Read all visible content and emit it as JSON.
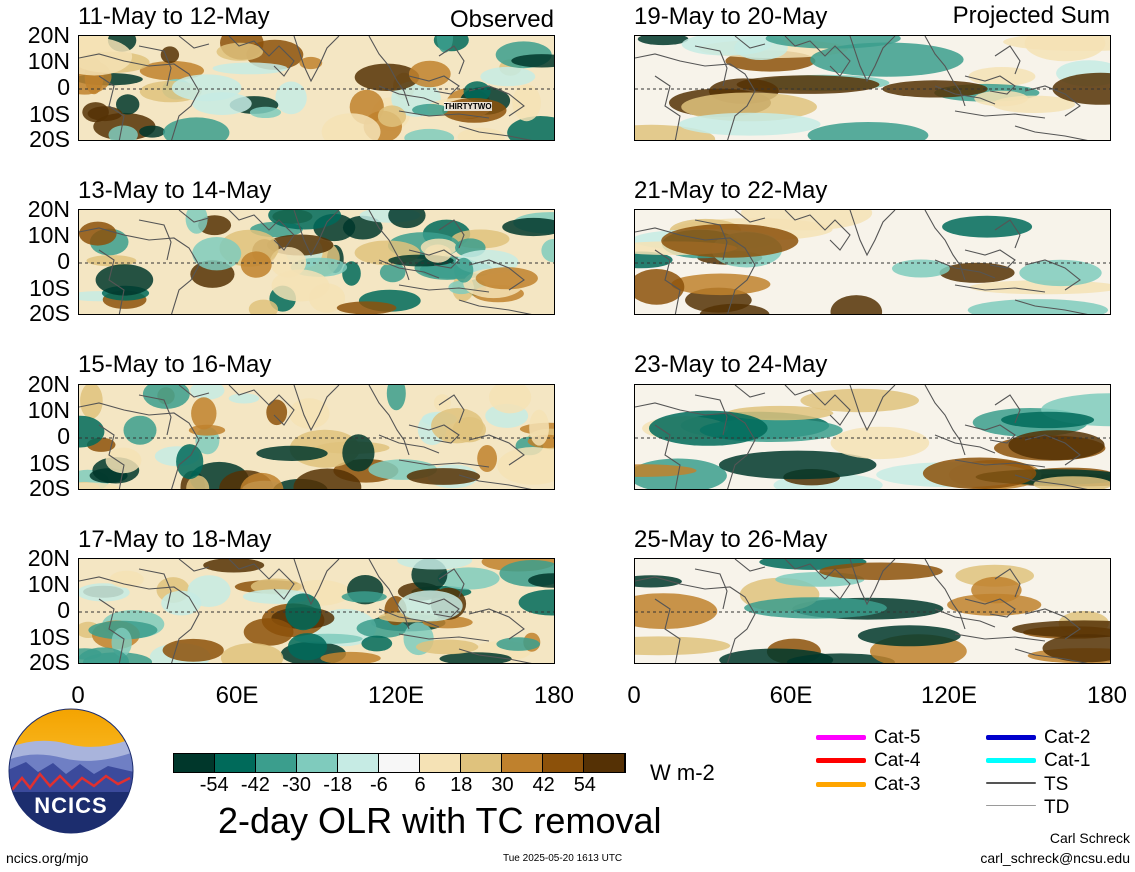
{
  "left_header_tag": "Observed",
  "right_header_tag": "Projected Sum",
  "panels_left": [
    {
      "title": "11-May to 12-May"
    },
    {
      "title": "13-May to 14-May"
    },
    {
      "title": "15-May to 16-May"
    },
    {
      "title": "17-May to 18-May"
    }
  ],
  "panels_right": [
    {
      "title": "19-May to 20-May"
    },
    {
      "title": "21-May to 22-May"
    },
    {
      "title": "23-May to 24-May"
    },
    {
      "title": "25-May to 26-May"
    }
  ],
  "storm_label": "THIRTYTWO",
  "y_labels": [
    "20N",
    "10N",
    "0",
    "10S",
    "20S"
  ],
  "x_labels": [
    "0",
    "60E",
    "120E",
    "180"
  ],
  "colorbar": {
    "ticks": [
      "-54",
      "-42",
      "-30",
      "-18",
      "-6",
      "6",
      "18",
      "30",
      "42",
      "54"
    ],
    "colors": [
      "#00372b",
      "#006a5a",
      "#3b9e8d",
      "#7fcbbd",
      "#c6ebe4",
      "#f7f7f7",
      "#f5e2b5",
      "#dfc27d",
      "#bf812d",
      "#8c510a",
      "#553105"
    ],
    "units": "W m-2"
  },
  "legend": [
    {
      "label": "Cat-5",
      "color": "#ff00ff"
    },
    {
      "label": "Cat-4",
      "color": "#ff0000"
    },
    {
      "label": "Cat-3",
      "color": "#ffa500"
    },
    {
      "label": "Cat-2",
      "color": "#0000cc"
    },
    {
      "label": "Cat-1",
      "color": "#00ffff"
    },
    {
      "label": "TS",
      "color": "#555555"
    },
    {
      "label": "TD",
      "color": "#9a9a9a"
    }
  ],
  "logo_text": "NCICS",
  "main_title": "2-day OLR with TC removal",
  "url": "ncics.org/mjo",
  "timestamp": "Tue 2025-05-20 1613 UTC",
  "author_name": "Carl Schreck",
  "author_email": "carl_schreck@ncsu.edu"
}
